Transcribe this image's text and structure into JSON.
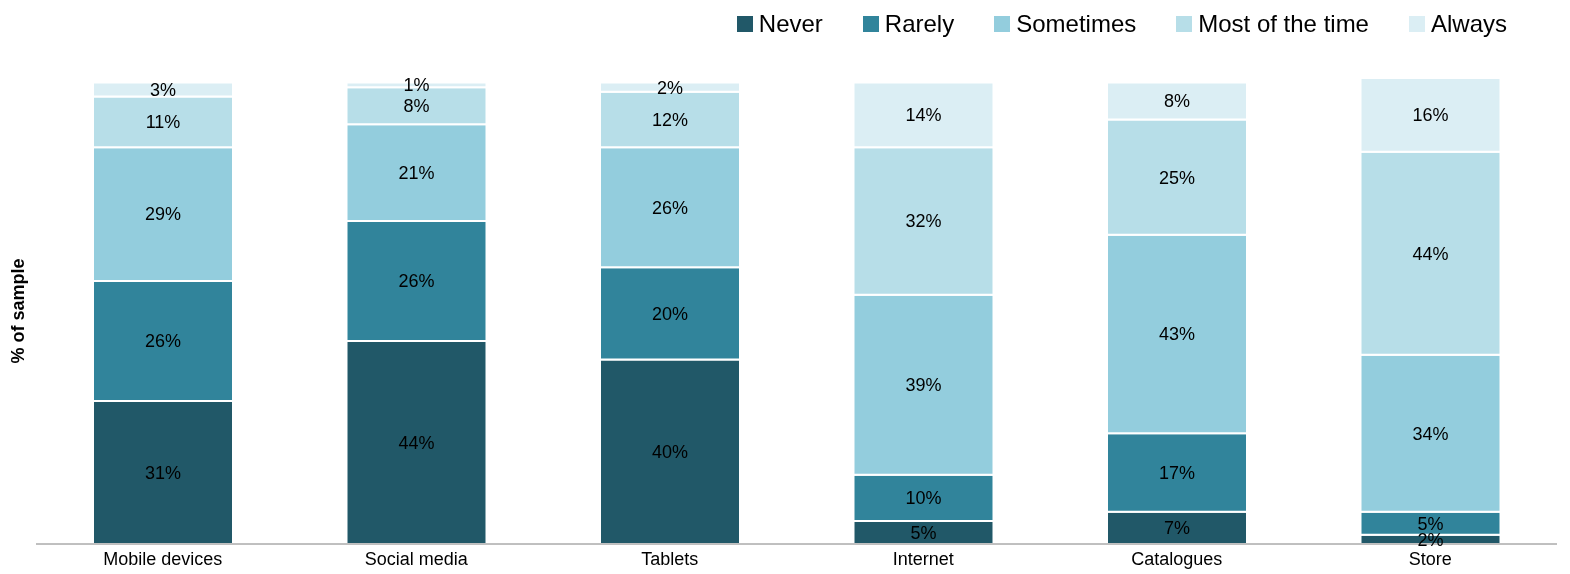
{
  "chart_data": {
    "type": "bar",
    "stacked": true,
    "ylabel": "% of sample",
    "categories": [
      "Mobile devices",
      "Social media",
      "Tablets",
      "Internet",
      "Catalogues",
      "Store"
    ],
    "series": [
      {
        "name": "Never",
        "color": "#215868",
        "values": [
          31,
          44,
          40,
          5,
          7,
          2
        ],
        "value_labels": [
          "31%",
          "44%",
          "40%",
          "5%",
          "7%",
          "2%"
        ]
      },
      {
        "name": "Rarely",
        "color": "#31849b",
        "values": [
          26,
          26,
          20,
          10,
          17,
          5
        ],
        "value_labels": [
          "26%",
          "26%",
          "20%",
          "10%",
          "17%",
          "5%"
        ]
      },
      {
        "name": "Sometimes",
        "color": "#93cddd",
        "values": [
          29,
          21,
          26,
          39,
          43,
          34
        ],
        "value_labels": [
          "29%",
          "21%",
          "26%",
          "39%",
          "43%",
          "34%"
        ]
      },
      {
        "name": "Most of the time",
        "color": "#b7dee8",
        "values": [
          11,
          8,
          12,
          32,
          25,
          44
        ],
        "value_labels": [
          "11%",
          "8%",
          "12%",
          "32%",
          "25%",
          "44%"
        ]
      },
      {
        "name": "Always",
        "color": "#dbeef4",
        "values": [
          3,
          1,
          2,
          14,
          8,
          16
        ],
        "value_labels": [
          "3%",
          "1%",
          "2%",
          "14%",
          "8%",
          "16%"
        ]
      }
    ],
    "legend": "top right",
    "grid": false
  }
}
